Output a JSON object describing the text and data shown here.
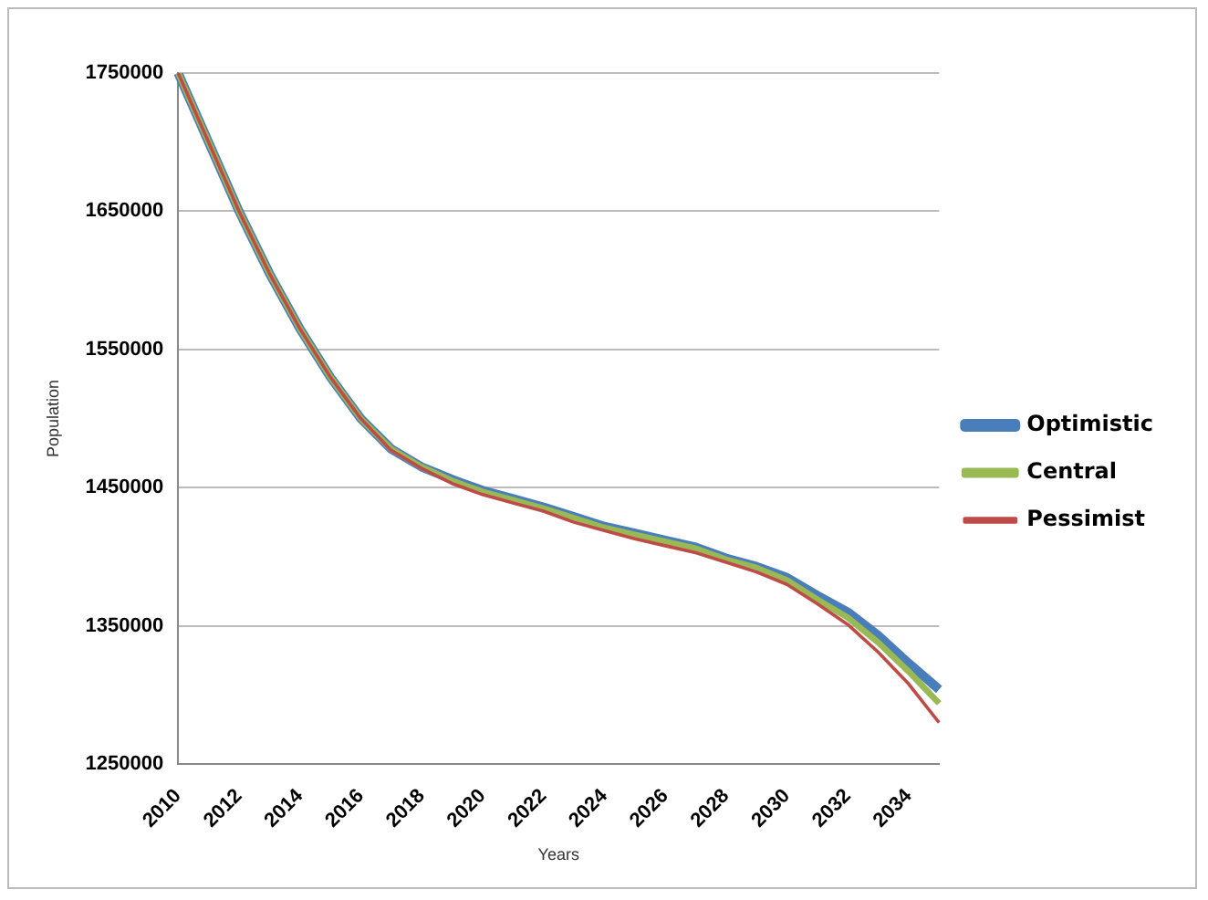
{
  "chart_data": {
    "type": "line",
    "xlabel": "Years",
    "ylabel": "Population",
    "categories": [
      "2010",
      null,
      "2012",
      null,
      "2014",
      null,
      "2016",
      null,
      "2018",
      null,
      "2020",
      null,
      "2022",
      null,
      "2024",
      null,
      "2026",
      null,
      "2028",
      null,
      "2030",
      null,
      "2032",
      null,
      "2034",
      null
    ],
    "series": [
      {
        "name": "Optimistic",
        "color": "#4a7ebb",
        "values": [
          1750000,
          1700000,
          1650000,
          1605000,
          1565000,
          1530000,
          1500000,
          1478000,
          1465000,
          1456000,
          1448000,
          1442000,
          1436000,
          1429000,
          1422000,
          1417000,
          1412000,
          1407000,
          1399000,
          1393000,
          1385000,
          1372000,
          1360000,
          1343000,
          1323000,
          1304000
        ]
      },
      {
        "name": "Central",
        "color": "#98b954",
        "values": [
          1750000,
          1700000,
          1650000,
          1605000,
          1565000,
          1530000,
          1500000,
          1478000,
          1465000,
          1455000,
          1447000,
          1441000,
          1435000,
          1428000,
          1421000,
          1416000,
          1411000,
          1406000,
          1398000,
          1392000,
          1383000,
          1369000,
          1356000,
          1338000,
          1317000,
          1294000
        ]
      },
      {
        "name": "Pessimist",
        "color": "#be4b48",
        "values": [
          1750000,
          1700000,
          1650000,
          1605000,
          1565000,
          1530000,
          1500000,
          1477000,
          1464000,
          1453000,
          1445000,
          1439000,
          1433000,
          1425000,
          1419000,
          1413000,
          1408000,
          1403000,
          1396000,
          1389000,
          1380000,
          1366000,
          1351000,
          1331000,
          1308000,
          1280000
        ]
      }
    ],
    "ylim": [
      1250000,
      1750000
    ],
    "yticks": [
      1250000,
      1350000,
      1450000,
      1550000,
      1650000,
      1750000
    ],
    "grid": "y",
    "legend": "right",
    "marker": "none",
    "line_style": "solid"
  }
}
